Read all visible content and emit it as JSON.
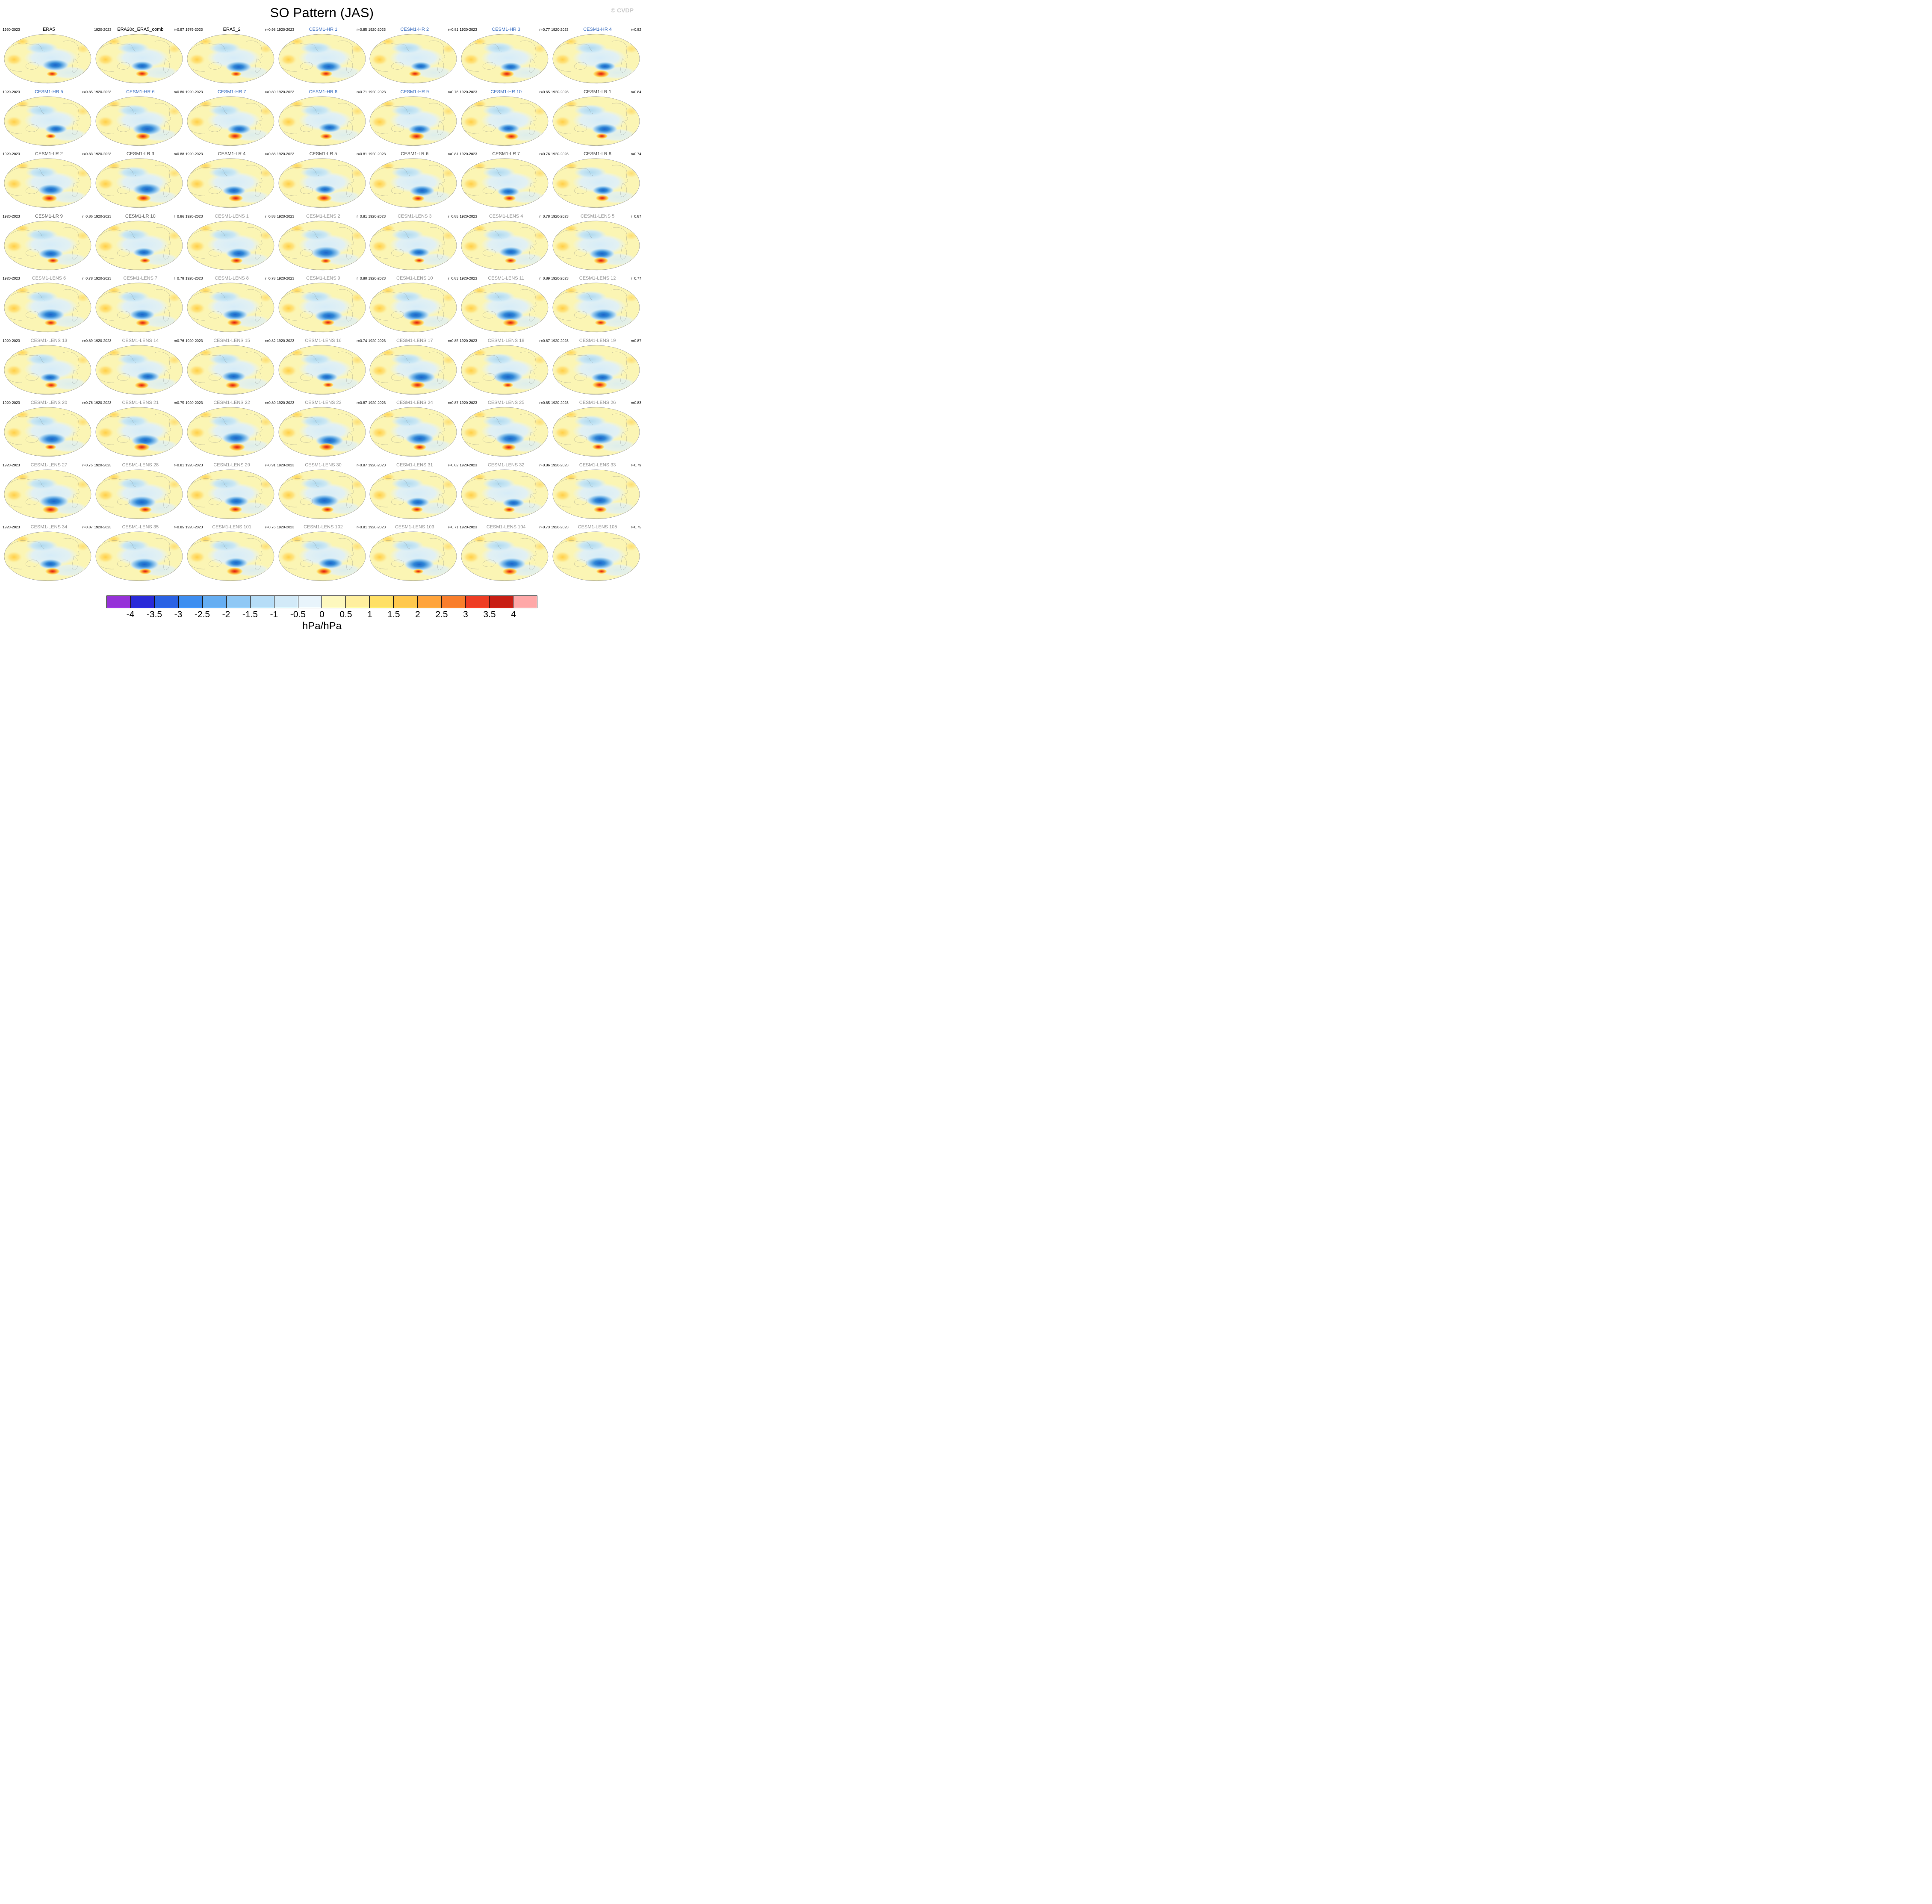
{
  "page": {
    "title": "SO Pattern (JAS)",
    "watermark": "© CVDP"
  },
  "style": {
    "title_colors": {
      "obs": "#000000",
      "hr": "#3C6FC0",
      "lr": "#4D4D4D",
      "lens": "#8F8F8F"
    },
    "map_colors": {
      "base": "#FBF5B4",
      "light_blue": "#AFD9EF",
      "pale_blue": "#D6ECF8",
      "deep_blue": "#1A63C8",
      "red": "#E01B0C",
      "orange": "#FCA33A",
      "yellow": "#FFCE45",
      "coastline": "#777777"
    }
  },
  "colorbar": {
    "label": "hPa/hPa",
    "ticks": [
      "-4",
      "-3.5",
      "-3",
      "-2.5",
      "-2",
      "-1.5",
      "-1",
      "-0.5",
      "0",
      "0.5",
      "1",
      "1.5",
      "2",
      "2.5",
      "3",
      "3.5",
      "4"
    ],
    "colors": [
      "#9632D8",
      "#2A2AD8",
      "#2A62E4",
      "#3E8EF0",
      "#66AEF2",
      "#8FC8F5",
      "#B6DDF7",
      "#D2EAF8",
      "#E8F4FB",
      "#FDF8BE",
      "#FFEF9E",
      "#FFE066",
      "#FFC84D",
      "#FFA43C",
      "#F97E2C",
      "#EE3D24",
      "#C81E14",
      "#FFA8A8"
    ]
  },
  "chart_data": {
    "type": "heatmap",
    "subtype": "small-multiples of global maps (Robinson projection), sea-level-pressure regression pattern",
    "title": "SO Pattern (JAS)",
    "units": "hPa/hPa",
    "colorbar_range": [
      -4,
      4
    ],
    "colorbar_interval": 0.5,
    "legend_position": "bottom",
    "grid": {
      "rows": 9,
      "cols": 7
    },
    "panels": [
      {
        "name": "ERA5",
        "period": "1950-2023",
        "r": null,
        "r_label": "",
        "group": "obs"
      },
      {
        "name": "ERA20c_ERA5_comb",
        "period": "1920-2023",
        "r": 0.97,
        "r_label": "r=0.97",
        "group": "obs"
      },
      {
        "name": "ERA5_2",
        "period": "1979-2023",
        "r": 0.98,
        "r_label": "r=0.98",
        "group": "obs"
      },
      {
        "name": "CESM1-HR 1",
        "period": "1920-2023",
        "r": 0.85,
        "r_label": "r=0.85",
        "group": "hr"
      },
      {
        "name": "CESM1-HR 2",
        "period": "1920-2023",
        "r": 0.81,
        "r_label": "r=0.81",
        "group": "hr"
      },
      {
        "name": "CESM1-HR 3",
        "period": "1920-2023",
        "r": 0.77,
        "r_label": "r=0.77",
        "group": "hr"
      },
      {
        "name": "CESM1-HR 4",
        "period": "1920-2023",
        "r": 0.82,
        "r_label": "r=0.82",
        "group": "hr"
      },
      {
        "name": "CESM1-HR 5",
        "period": "1920-2023",
        "r": 0.85,
        "r_label": "r=0.85",
        "group": "hr"
      },
      {
        "name": "CESM1-HR 6",
        "period": "1920-2023",
        "r": 0.8,
        "r_label": "r=0.80",
        "group": "hr"
      },
      {
        "name": "CESM1-HR 7",
        "period": "1920-2023",
        "r": 0.8,
        "r_label": "r=0.80",
        "group": "hr"
      },
      {
        "name": "CESM1-HR 8",
        "period": "1920-2023",
        "r": 0.71,
        "r_label": "r=0.71",
        "group": "hr"
      },
      {
        "name": "CESM1-HR 9",
        "period": "1920-2023",
        "r": 0.76,
        "r_label": "r=0.76",
        "group": "hr"
      },
      {
        "name": "CESM1-HR 10",
        "period": "1920-2023",
        "r": 0.65,
        "r_label": "r=0.65",
        "group": "hr"
      },
      {
        "name": "CESM1-LR 1",
        "period": "1920-2023",
        "r": 0.84,
        "r_label": "r=0.84",
        "group": "lr"
      },
      {
        "name": "CESM1-LR 2",
        "period": "1920-2023",
        "r": 0.83,
        "r_label": "r=0.83",
        "group": "lr"
      },
      {
        "name": "CESM1-LR 3",
        "period": "1920-2023",
        "r": 0.88,
        "r_label": "r=0.88",
        "group": "lr"
      },
      {
        "name": "CESM1-LR 4",
        "period": "1920-2023",
        "r": 0.88,
        "r_label": "r=0.88",
        "group": "lr"
      },
      {
        "name": "CESM1-LR 5",
        "period": "1920-2023",
        "r": 0.81,
        "r_label": "r=0.81",
        "group": "lr"
      },
      {
        "name": "CESM1-LR 6",
        "period": "1920-2023",
        "r": 0.81,
        "r_label": "r=0.81",
        "group": "lr"
      },
      {
        "name": "CESM1-LR 7",
        "period": "1920-2023",
        "r": 0.76,
        "r_label": "r=0.76",
        "group": "lr"
      },
      {
        "name": "CESM1-LR 8",
        "period": "1920-2023",
        "r": 0.74,
        "r_label": "r=0.74",
        "group": "lr"
      },
      {
        "name": "CESM1-LR 9",
        "period": "1920-2023",
        "r": 0.86,
        "r_label": "r=0.86",
        "group": "lr"
      },
      {
        "name": "CESM1-LR 10",
        "period": "1920-2023",
        "r": 0.86,
        "r_label": "r=0.86",
        "group": "lr"
      },
      {
        "name": "CESM1-LENS 1",
        "period": "1920-2023",
        "r": 0.88,
        "r_label": "r=0.88",
        "group": "lens"
      },
      {
        "name": "CESM1-LENS 2",
        "period": "1920-2023",
        "r": 0.81,
        "r_label": "r=0.81",
        "group": "lens"
      },
      {
        "name": "CESM1-LENS 3",
        "period": "1920-2023",
        "r": 0.85,
        "r_label": "r=0.85",
        "group": "lens"
      },
      {
        "name": "CESM1-LENS 4",
        "period": "1920-2023",
        "r": 0.78,
        "r_label": "r=0.78",
        "group": "lens"
      },
      {
        "name": "CESM1-LENS 5",
        "period": "1920-2023",
        "r": 0.87,
        "r_label": "r=0.87",
        "group": "lens"
      },
      {
        "name": "CESM1-LENS 6",
        "period": "1920-2023",
        "r": 0.78,
        "r_label": "r=0.78",
        "group": "lens"
      },
      {
        "name": "CESM1-LENS 7",
        "period": "1920-2023",
        "r": 0.78,
        "r_label": "r=0.78",
        "group": "lens"
      },
      {
        "name": "CESM1-LENS 8",
        "period": "1920-2023",
        "r": 0.78,
        "r_label": "r=0.78",
        "group": "lens"
      },
      {
        "name": "CESM1-LENS 9",
        "period": "1920-2023",
        "r": 0.8,
        "r_label": "r=0.80",
        "group": "lens"
      },
      {
        "name": "CESM1-LENS 10",
        "period": "1920-2023",
        "r": 0.83,
        "r_label": "r=0.83",
        "group": "lens"
      },
      {
        "name": "CESM1-LENS 11",
        "period": "1920-2023",
        "r": 0.89,
        "r_label": "r=0.89",
        "group": "lens"
      },
      {
        "name": "CESM1-LENS 12",
        "period": "1920-2023",
        "r": 0.77,
        "r_label": "r=0.77",
        "group": "lens"
      },
      {
        "name": "CESM1-LENS 13",
        "period": "1920-2023",
        "r": 0.89,
        "r_label": "r=0.89",
        "group": "lens"
      },
      {
        "name": "CESM1-LENS 14",
        "period": "1920-2023",
        "r": 0.76,
        "r_label": "r=0.76",
        "group": "lens"
      },
      {
        "name": "CESM1-LENS 15",
        "period": "1920-2023",
        "r": 0.82,
        "r_label": "r=0.82",
        "group": "lens"
      },
      {
        "name": "CESM1-LENS 16",
        "period": "1920-2023",
        "r": 0.74,
        "r_label": "r=0.74",
        "group": "lens"
      },
      {
        "name": "CESM1-LENS 17",
        "period": "1920-2023",
        "r": 0.85,
        "r_label": "r=0.85",
        "group": "lens"
      },
      {
        "name": "CESM1-LENS 18",
        "period": "1920-2023",
        "r": 0.87,
        "r_label": "r=0.87",
        "group": "lens"
      },
      {
        "name": "CESM1-LENS 19",
        "period": "1920-2023",
        "r": 0.87,
        "r_label": "r=0.87",
        "group": "lens"
      },
      {
        "name": "CESM1-LENS 20",
        "period": "1920-2023",
        "r": 0.76,
        "r_label": "r=0.76",
        "group": "lens"
      },
      {
        "name": "CESM1-LENS 21",
        "period": "1920-2023",
        "r": 0.75,
        "r_label": "r=0.75",
        "group": "lens"
      },
      {
        "name": "CESM1-LENS 22",
        "period": "1920-2023",
        "r": 0.8,
        "r_label": "r=0.80",
        "group": "lens"
      },
      {
        "name": "CESM1-LENS 23",
        "period": "1920-2023",
        "r": 0.87,
        "r_label": "r=0.87",
        "group": "lens"
      },
      {
        "name": "CESM1-LENS 24",
        "period": "1920-2023",
        "r": 0.87,
        "r_label": "r=0.87",
        "group": "lens"
      },
      {
        "name": "CESM1-LENS 25",
        "period": "1920-2023",
        "r": 0.85,
        "r_label": "r=0.85",
        "group": "lens"
      },
      {
        "name": "CESM1-LENS 26",
        "period": "1920-2023",
        "r": 0.83,
        "r_label": "r=0.83",
        "group": "lens"
      },
      {
        "name": "CESM1-LENS 27",
        "period": "1920-2023",
        "r": 0.75,
        "r_label": "r=0.75",
        "group": "lens"
      },
      {
        "name": "CESM1-LENS 28",
        "period": "1920-2023",
        "r": 0.81,
        "r_label": "r=0.81",
        "group": "lens"
      },
      {
        "name": "CESM1-LENS 29",
        "period": "1920-2023",
        "r": 0.91,
        "r_label": "r=0.91",
        "group": "lens"
      },
      {
        "name": "CESM1-LENS 30",
        "period": "1920-2023",
        "r": 0.87,
        "r_label": "r=0.87",
        "group": "lens"
      },
      {
        "name": "CESM1-LENS 31",
        "period": "1920-2023",
        "r": 0.82,
        "r_label": "r=0.82",
        "group": "lens"
      },
      {
        "name": "CESM1-LENS 32",
        "period": "1920-2023",
        "r": 0.86,
        "r_label": "r=0.86",
        "group": "lens"
      },
      {
        "name": "CESM1-LENS 33",
        "period": "1920-2023",
        "r": 0.79,
        "r_label": "r=0.79",
        "group": "lens"
      },
      {
        "name": "CESM1-LENS 34",
        "period": "1920-2023",
        "r": 0.87,
        "r_label": "r=0.87",
        "group": "lens"
      },
      {
        "name": "CESM1-LENS 35",
        "period": "1920-2023",
        "r": 0.85,
        "r_label": "r=0.85",
        "group": "lens"
      },
      {
        "name": "CESM1-LENS 101",
        "period": "1920-2023",
        "r": 0.76,
        "r_label": "r=0.76",
        "group": "lens"
      },
      {
        "name": "CESM1-LENS 102",
        "period": "1920-2023",
        "r": 0.81,
        "r_label": "r=0.81",
        "group": "lens"
      },
      {
        "name": "CESM1-LENS 103",
        "period": "1920-2023",
        "r": 0.71,
        "r_label": "r=0.71",
        "group": "lens"
      },
      {
        "name": "CESM1-LENS 104",
        "period": "1920-2023",
        "r": 0.73,
        "r_label": "r=0.73",
        "group": "lens"
      },
      {
        "name": "CESM1-LENS 105",
        "period": "1920-2023",
        "r": 0.75,
        "r_label": "r=0.75",
        "group": "lens"
      }
    ]
  }
}
